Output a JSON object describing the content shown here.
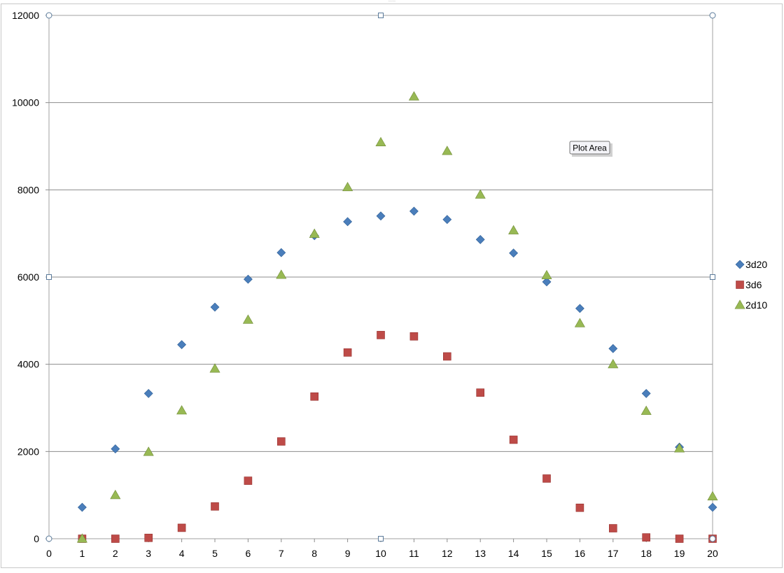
{
  "chart_data": {
    "type": "scatter",
    "title": "",
    "xlabel": "",
    "ylabel": "",
    "xlim": [
      0,
      20
    ],
    "ylim": [
      0,
      12000
    ],
    "x_ticks": [
      "0",
      "1",
      "2",
      "3",
      "4",
      "5",
      "6",
      "7",
      "8",
      "9",
      "10",
      "11",
      "12",
      "13",
      "14",
      "15",
      "16",
      "17",
      "18",
      "19",
      "20"
    ],
    "y_ticks": [
      "0",
      "2000",
      "4000",
      "6000",
      "8000",
      "10000",
      "12000"
    ],
    "grid": "horizontal",
    "legend_position": "right",
    "series": [
      {
        "name": "3d20",
        "marker": "diamond",
        "color": "#4a7ebb",
        "x": [
          1,
          2,
          3,
          4,
          5,
          6,
          7,
          8,
          9,
          10,
          11,
          12,
          13,
          14,
          15,
          16,
          17,
          18,
          19,
          20
        ],
        "y": [
          720,
          2060,
          3330,
          4450,
          5310,
          5950,
          6560,
          6950,
          7270,
          7400,
          7510,
          7320,
          6860,
          6550,
          5890,
          5280,
          4360,
          3330,
          2100,
          720
        ]
      },
      {
        "name": "3d6",
        "marker": "square",
        "color": "#be4b48",
        "x": [
          1,
          2,
          3,
          4,
          5,
          6,
          7,
          8,
          9,
          10,
          11,
          12,
          13,
          14,
          15,
          16,
          17,
          18,
          19,
          20
        ],
        "y": [
          0,
          0,
          20,
          250,
          740,
          1330,
          2230,
          3260,
          4270,
          4670,
          4640,
          4180,
          3350,
          2270,
          1380,
          710,
          240,
          30,
          0,
          0
        ]
      },
      {
        "name": "2d10",
        "marker": "triangle",
        "color": "#98b954",
        "x": [
          1,
          2,
          3,
          4,
          5,
          6,
          7,
          8,
          9,
          10,
          11,
          12,
          13,
          14,
          15,
          16,
          17,
          18,
          19,
          20
        ],
        "y": [
          0,
          1000,
          1990,
          2940,
          3900,
          5020,
          6050,
          6990,
          8060,
          9090,
          10140,
          8890,
          7890,
          7070,
          6040,
          4940,
          4000,
          2930,
          2070,
          970
        ]
      }
    ],
    "tooltip": "Plot Area"
  }
}
